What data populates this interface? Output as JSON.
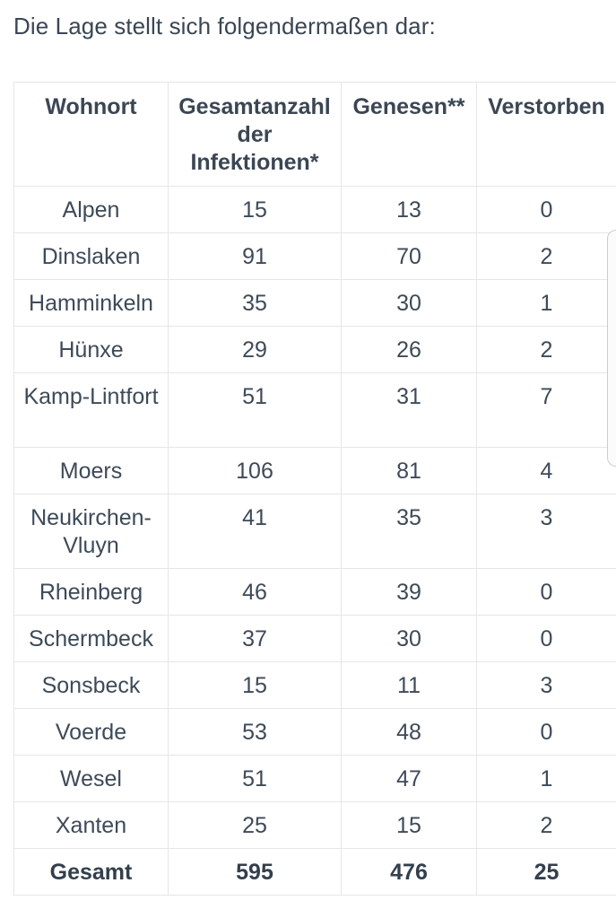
{
  "intro_text": "Die Lage stellt sich folgendermaßen dar:",
  "table": {
    "headers": [
      "Wohnort",
      "Gesamtanzahl der Infektionen*",
      "Genesen**",
      "Verstorben"
    ],
    "rows": [
      {
        "wohnort": "Alpen",
        "gesamt": "15",
        "genesen": "13",
        "verstorben": "0"
      },
      {
        "wohnort": "Dinslaken",
        "gesamt": "91",
        "genesen": "70",
        "verstorben": "2"
      },
      {
        "wohnort": "Hamminkeln",
        "gesamt": "35",
        "genesen": "30",
        "verstorben": "1"
      },
      {
        "wohnort": "Hünxe",
        "gesamt": "29",
        "genesen": "26",
        "verstorben": "2"
      },
      {
        "wohnort": "Kamp-Lintfort",
        "gesamt": "51",
        "genesen": "31",
        "verstorben": "7"
      },
      {
        "wohnort": "Moers",
        "gesamt": "106",
        "genesen": "81",
        "verstorben": "4"
      },
      {
        "wohnort": "Neukirchen-Vluyn",
        "gesamt": "41",
        "genesen": "35",
        "verstorben": "3"
      },
      {
        "wohnort": "Rheinberg",
        "gesamt": "46",
        "genesen": "39",
        "verstorben": "0"
      },
      {
        "wohnort": "Schermbeck",
        "gesamt": "37",
        "genesen": "30",
        "verstorben": "0"
      },
      {
        "wohnort": "Sonsbeck",
        "gesamt": "15",
        "genesen": "11",
        "verstorben": "3"
      },
      {
        "wohnort": "Voerde",
        "gesamt": "53",
        "genesen": "48",
        "verstorben": "0"
      },
      {
        "wohnort": "Wesel",
        "gesamt": "51",
        "genesen": "47",
        "verstorben": "1"
      },
      {
        "wohnort": "Xanten",
        "gesamt": "25",
        "genesen": "15",
        "verstorben": "2"
      }
    ],
    "total": {
      "wohnort": "Gesamt",
      "gesamt": "595",
      "genesen": "476",
      "verstorben": "25"
    }
  }
}
